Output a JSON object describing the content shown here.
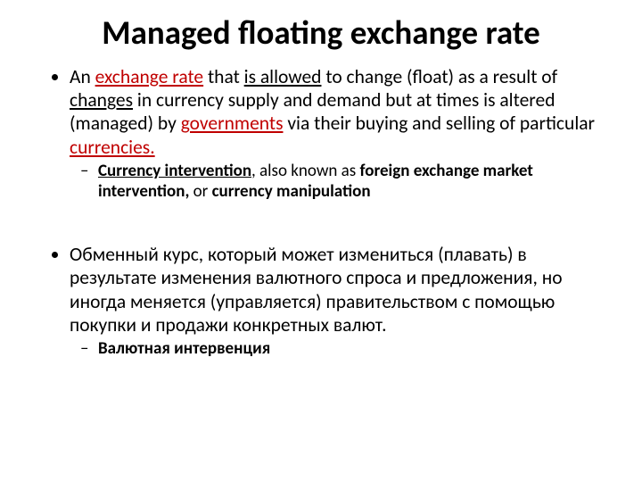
{
  "colors": {
    "text": "#000000",
    "accent_red": "#c00000",
    "background": "#ffffff"
  },
  "typography": {
    "family": "Calibri",
    "title_size_pt": 37,
    "body_size_pt": 21.5,
    "sub_size_pt": 19,
    "title_weight": 700
  },
  "title": "Managed floating exchange rate",
  "b1": {
    "t1": "An ",
    "t2": "exchange rate",
    "t3": " that ",
    "t4": "is allowed",
    "t5": " to change (float) as a result of ",
    "t6": "changes",
    "t7": " in currency supply and demand but at times is altered (managed) by ",
    "t8": "governments",
    "t9": " via their buying and selling of particular ",
    "t10": "currencies.",
    "sub": {
      "t1": "Currency intervention",
      "t2": ", also known as ",
      "t3": "foreign exchange market intervention,",
      "t4": " or ",
      "t5": "currency manipulation"
    }
  },
  "b2": {
    "t1": "Обменный курс, который может измениться (плавать) в результате изменения валютного спроса и предложения, но иногда меняется (управляется) правительством с помощью покупки и продажи конкретных валют.",
    "sub": {
      "t1": "Валютная интервенция"
    }
  }
}
